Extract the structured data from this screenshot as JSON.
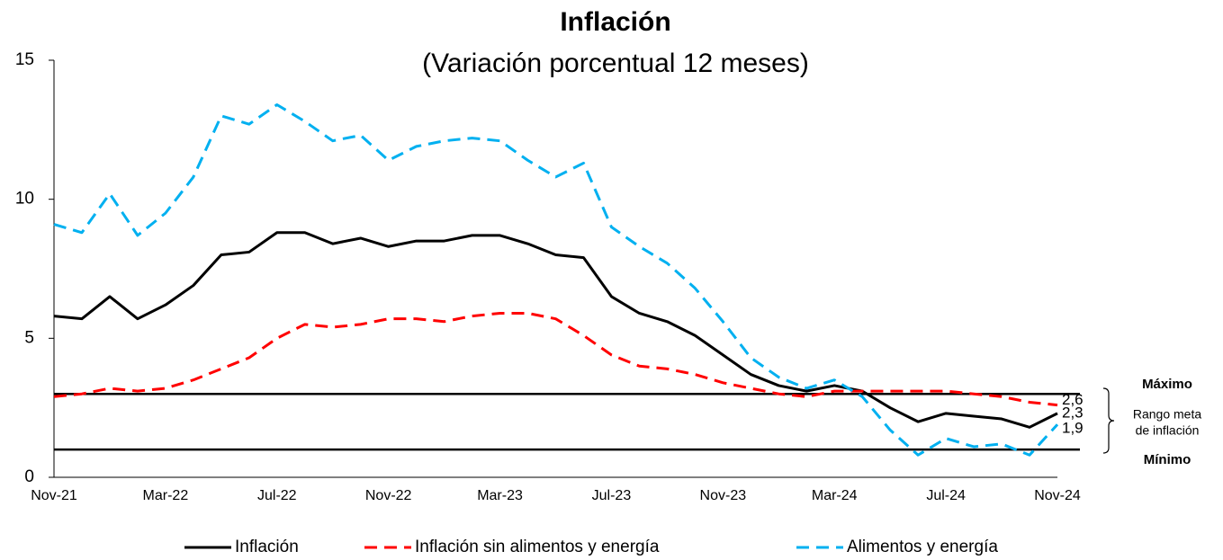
{
  "chart_data": {
    "type": "line",
    "title": "Inflación",
    "subtitle": "(Variación porcentual 12 meses)",
    "categories": [
      "Nov-21",
      null,
      null,
      null,
      "Mar-22",
      null,
      null,
      null,
      "Jul-22",
      null,
      null,
      null,
      "Nov-22",
      null,
      null,
      null,
      "Mar-23",
      null,
      null,
      null,
      "Jul-23",
      null,
      null,
      null,
      "Nov-23",
      null,
      null,
      null,
      "Mar-24",
      null,
      null,
      null,
      "Jul-24",
      null,
      null,
      null,
      "Nov-24"
    ],
    "ylim": [
      0,
      15
    ],
    "yticks": [
      0,
      5,
      10,
      15
    ],
    "series": [
      {
        "name": "Inflación",
        "color": "#000000",
        "dash": "solid",
        "values": [
          5.8,
          5.7,
          6.5,
          5.7,
          6.2,
          6.9,
          8.0,
          8.1,
          8.8,
          8.8,
          8.4,
          8.6,
          8.3,
          8.5,
          8.5,
          8.7,
          8.7,
          8.4,
          8.0,
          7.9,
          6.5,
          5.9,
          5.6,
          5.1,
          4.4,
          3.7,
          3.3,
          3.1,
          3.3,
          3.1,
          2.5,
          2.0,
          2.3,
          2.2,
          2.1,
          1.8,
          2.3
        ],
        "value_labels": [
          null,
          null,
          null,
          null,
          null,
          null,
          null,
          null,
          null,
          null,
          null,
          null,
          null,
          null,
          null,
          null,
          null,
          null,
          null,
          null,
          null,
          null,
          null,
          null,
          null,
          null,
          null,
          null,
          null,
          null,
          null,
          null,
          null,
          null,
          null,
          null,
          "2,3"
        ]
      },
      {
        "name": "Inflación sin alimentos y energía",
        "color": "#ff0000",
        "dash": "dashed",
        "values": [
          2.9,
          3.0,
          3.2,
          3.1,
          3.2,
          3.5,
          3.9,
          4.3,
          5.0,
          5.5,
          5.4,
          5.5,
          5.7,
          5.7,
          5.6,
          5.8,
          5.9,
          5.9,
          5.7,
          5.1,
          4.4,
          4.0,
          3.9,
          3.7,
          3.4,
          3.2,
          3.0,
          2.9,
          3.1,
          3.1,
          3.1,
          3.1,
          3.1,
          3.0,
          2.9,
          2.7,
          2.6
        ],
        "value_labels": [
          null,
          null,
          null,
          null,
          null,
          null,
          null,
          null,
          null,
          null,
          null,
          null,
          null,
          null,
          null,
          null,
          null,
          null,
          null,
          null,
          null,
          null,
          null,
          null,
          null,
          null,
          null,
          null,
          null,
          null,
          null,
          null,
          null,
          null,
          null,
          null,
          "2,6"
        ]
      },
      {
        "name": "Alimentos y energía",
        "color": "#00b0f0",
        "dash": "dashed",
        "values": [
          9.1,
          8.8,
          10.2,
          8.7,
          9.5,
          10.8,
          13.0,
          12.7,
          13.4,
          12.8,
          12.1,
          12.3,
          11.4,
          11.9,
          12.1,
          12.2,
          12.1,
          11.4,
          10.8,
          11.3,
          9.0,
          8.3,
          7.7,
          6.8,
          5.6,
          4.3,
          3.6,
          3.2,
          3.5,
          2.9,
          1.7,
          0.8,
          1.4,
          1.1,
          1.2,
          0.8,
          1.9
        ],
        "value_labels": [
          null,
          null,
          null,
          null,
          null,
          null,
          null,
          null,
          null,
          null,
          null,
          null,
          null,
          null,
          null,
          null,
          null,
          null,
          null,
          null,
          null,
          null,
          null,
          null,
          null,
          null,
          null,
          null,
          null,
          null,
          null,
          null,
          null,
          null,
          null,
          null,
          "1,9"
        ]
      }
    ],
    "reference_lines": [
      {
        "value": 3,
        "label": "Máximo"
      },
      {
        "value": 1,
        "label": "Mínimo"
      }
    ],
    "annotation": [
      "Rango meta",
      "de inflación"
    ],
    "legend": "bottom"
  }
}
